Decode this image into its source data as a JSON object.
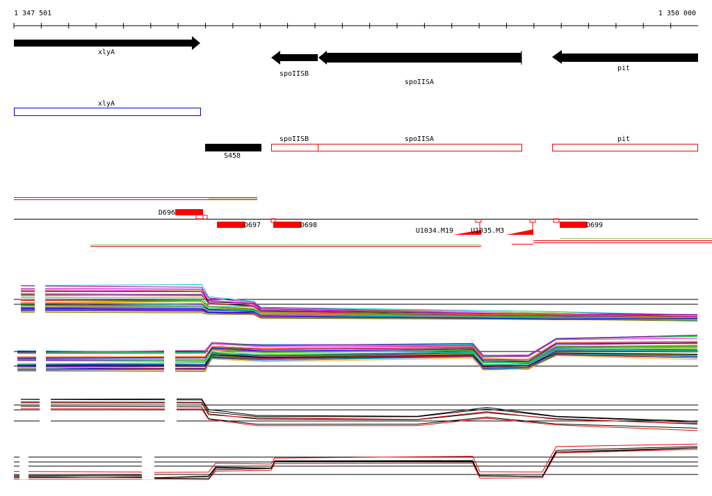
{
  "ruler": {
    "start": "1 347 501",
    "end": "1 350 000"
  },
  "genes": [
    {
      "label": "xlyA"
    },
    {
      "label": "spoIISB"
    },
    {
      "label": "spoIISA"
    },
    {
      "label": "pit"
    }
  ],
  "annotations": [
    {
      "label": "xlyA"
    },
    {
      "label": "spoIISB"
    },
    {
      "label": "spoIISA"
    },
    {
      "label": "pit"
    },
    {
      "label": "S458"
    }
  ],
  "features": [
    {
      "label": "D696"
    },
    {
      "label": "D697"
    },
    {
      "label": "D698"
    },
    {
      "label": "D699"
    },
    {
      "label": "U1034.M19"
    },
    {
      "label": "U1035.M3"
    }
  ]
}
